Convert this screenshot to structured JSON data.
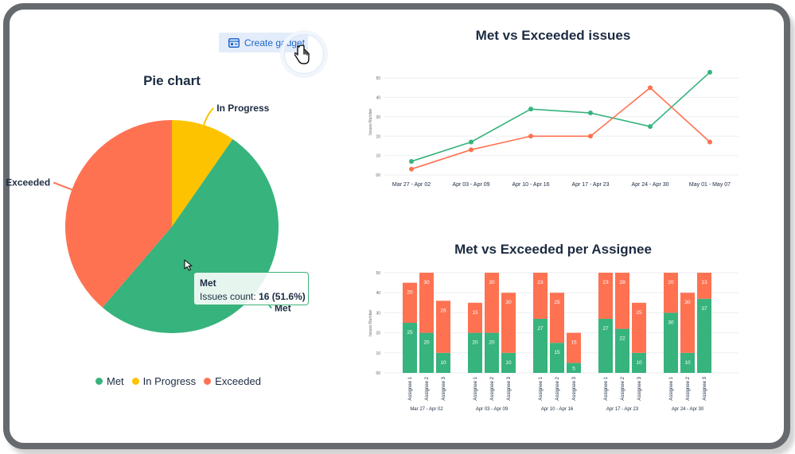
{
  "toolbar": {
    "create_gadget_label": "Create gadget"
  },
  "colors": {
    "met": "#37b37d",
    "in_progress": "#fec300",
    "exceeded": "#fe7252",
    "title": "#1c2b41",
    "accent": "#1f66c9"
  },
  "chart_data": [
    {
      "type": "pie",
      "title": "Pie chart",
      "labels": [
        "Met",
        "In Progress",
        "Exceeded"
      ],
      "values": [
        16,
        3,
        12
      ],
      "tooltip": {
        "name": "Met",
        "label": "Issues count:",
        "value": "16 (51.6%)"
      },
      "legend": [
        "Met",
        "In Progress",
        "Exceeded"
      ]
    },
    {
      "type": "line",
      "title": "Met vs Exceeded issues",
      "ylabel": "Issues Number",
      "categories": [
        "Mar 27 - Apr 02",
        "Apr 03 - Apr 09",
        "Apr 10 - Apr 16",
        "Apr 17 - Apr 23",
        "Apr 24 - Apr 30",
        "May 01 - May 07"
      ],
      "yticks": [
        "00",
        "10",
        "20",
        "30",
        "40",
        "50"
      ],
      "ylim": [
        0,
        55
      ],
      "series": [
        {
          "name": "Met",
          "values": [
            7,
            17,
            34,
            32,
            25,
            53
          ]
        },
        {
          "name": "Exceeded",
          "values": [
            3,
            13,
            20,
            20,
            45,
            17
          ]
        }
      ]
    },
    {
      "type": "bar",
      "stacked": true,
      "title": "Met vs Exceeded per Assignee",
      "ylabel": "Issues Number",
      "yticks": [
        "00",
        "10",
        "20",
        "30",
        "40",
        "50"
      ],
      "ylim": [
        0,
        50
      ],
      "groups": [
        {
          "label": "Mar 27 - Apr 02",
          "assignees": [
            "Assignee 1",
            "Assignee 2",
            "Assignee 3"
          ],
          "met": [
            25,
            20,
            10
          ],
          "exceeded": [
            20,
            30,
            26
          ]
        },
        {
          "label": "Apr 03 - Apr 09",
          "assignees": [
            "Assignee 1",
            "Assignee 2",
            "Assignee 3"
          ],
          "met": [
            20,
            20,
            10
          ],
          "exceeded": [
            15,
            30,
            30
          ]
        },
        {
          "label": "Apr 10 - Apr 16",
          "assignees": [
            "Assignee 1",
            "Assignee 2",
            "Assignee 3"
          ],
          "met": [
            27,
            15,
            5
          ],
          "exceeded": [
            23,
            25,
            15
          ]
        },
        {
          "label": "Apr 17 - Apr 23",
          "assignees": [
            "Assignee 1",
            "Assignee 2",
            "Assignee 3"
          ],
          "met": [
            27,
            22,
            10
          ],
          "exceeded": [
            23,
            28,
            25
          ]
        },
        {
          "label": "Apr 24 - Apr 30",
          "assignees": [
            "Assignee 1",
            "Assignee 2",
            "Assignee 3"
          ],
          "met": [
            30,
            10,
            37
          ],
          "exceeded": [
            20,
            30,
            13
          ]
        }
      ]
    }
  ]
}
